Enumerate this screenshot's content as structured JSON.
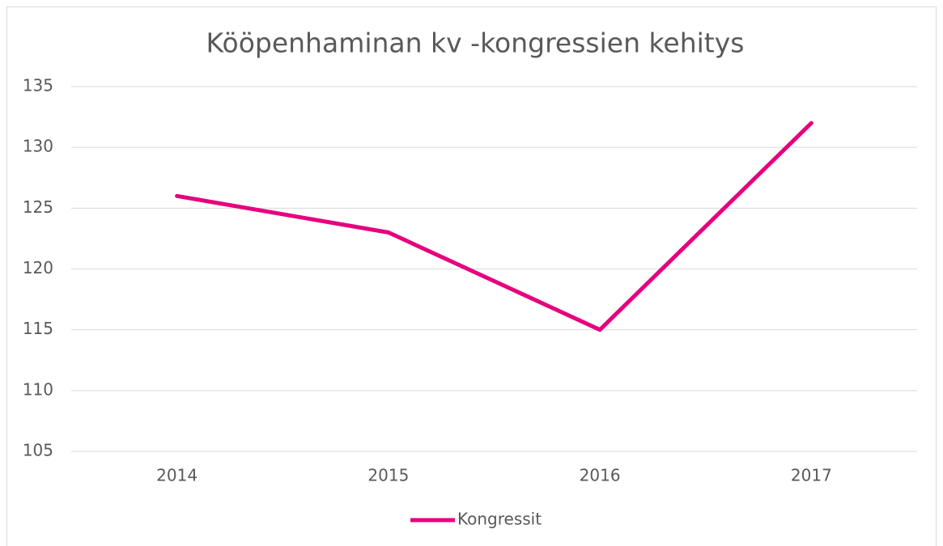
{
  "chart_data": {
    "type": "line",
    "title": "Kööpenhaminan kv -kongressien kehitys",
    "categories": [
      "2014",
      "2015",
      "2016",
      "2017"
    ],
    "series": [
      {
        "name": "Kongressit",
        "color": "#e6007e",
        "values": [
          126,
          123,
          115,
          132
        ]
      }
    ],
    "ylim": [
      105,
      135
    ],
    "yticks": [
      105,
      110,
      115,
      120,
      125,
      130,
      135
    ],
    "grid": true,
    "legend": "bottom"
  }
}
